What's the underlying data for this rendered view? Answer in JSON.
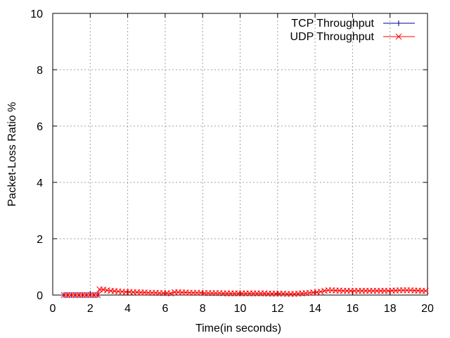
{
  "chart_data": {
    "type": "line",
    "xlabel": "Time(in seconds)",
    "ylabel": "Packet-Loss Ratio %",
    "xlim": [
      0,
      20
    ],
    "ylim": [
      0,
      10
    ],
    "x_ticks": [
      0,
      2,
      4,
      6,
      8,
      10,
      12,
      14,
      16,
      18,
      20
    ],
    "y_ticks": [
      0,
      2,
      4,
      6,
      8,
      10
    ],
    "grid": true,
    "legend_position": "top-right",
    "series": [
      {
        "name": "TCP Throughput",
        "color": "#00008b",
        "marker": "plus",
        "x": [
          0.6,
          0.8,
          1.0,
          1.2,
          1.4,
          1.6,
          1.8,
          2.0,
          2.2,
          2.4
        ],
        "y": [
          0,
          0,
          0,
          0,
          0,
          0,
          0,
          0,
          0,
          0
        ]
      },
      {
        "name": "UDP Throughput",
        "color": "#ff0000",
        "marker": "x",
        "x": [
          0.6,
          0.8,
          1.0,
          1.2,
          1.4,
          1.6,
          1.8,
          2.0,
          2.2,
          2.4,
          2.5,
          2.7,
          2.9,
          3.1,
          3.3,
          3.5,
          3.7,
          3.9,
          4.1,
          4.3,
          4.5,
          4.7,
          4.9,
          5.1,
          5.3,
          5.5,
          5.7,
          5.9,
          6.1,
          6.3,
          6.5,
          6.7,
          6.9,
          7.1,
          7.3,
          7.5,
          7.7,
          7.9,
          8.1,
          8.3,
          8.5,
          8.7,
          8.9,
          9.1,
          9.3,
          9.5,
          9.7,
          9.9,
          10.1,
          10.3,
          10.5,
          10.7,
          10.9,
          11.1,
          11.3,
          11.5,
          11.7,
          11.9,
          12.1,
          12.3,
          12.5,
          12.7,
          12.9,
          13.1,
          13.3,
          13.5,
          13.7,
          13.9,
          14.1,
          14.3,
          14.5,
          14.7,
          14.9,
          15.1,
          15.3,
          15.5,
          15.7,
          15.9,
          16.1,
          16.3,
          16.5,
          16.7,
          16.9,
          17.1,
          17.3,
          17.5,
          17.7,
          17.9,
          18.1,
          18.3,
          18.5,
          18.7,
          18.9,
          19.1,
          19.3,
          19.5,
          19.7,
          19.9
        ],
        "y": [
          0,
          0,
          0,
          0,
          0,
          0,
          0,
          0,
          0,
          0,
          0.2,
          0.19,
          0.17,
          0.15,
          0.14,
          0.13,
          0.12,
          0.11,
          0.11,
          0.1,
          0.1,
          0.09,
          0.09,
          0.08,
          0.08,
          0.08,
          0.07,
          0.07,
          0.07,
          0.06,
          0.1,
          0.1,
          0.09,
          0.09,
          0.08,
          0.08,
          0.08,
          0.08,
          0.07,
          0.07,
          0.07,
          0.07,
          0.07,
          0.06,
          0.06,
          0.06,
          0.06,
          0.06,
          0.06,
          0.06,
          0.06,
          0.06,
          0.06,
          0.06,
          0.06,
          0.05,
          0.05,
          0.05,
          0.05,
          0.05,
          0.04,
          0.04,
          0.04,
          0.05,
          0.06,
          0.07,
          0.08,
          0.09,
          0.1,
          0.12,
          0.15,
          0.17,
          0.17,
          0.16,
          0.16,
          0.15,
          0.15,
          0.15,
          0.15,
          0.15,
          0.15,
          0.15,
          0.15,
          0.15,
          0.15,
          0.15,
          0.15,
          0.15,
          0.16,
          0.16,
          0.17,
          0.17,
          0.17,
          0.17,
          0.16,
          0.16,
          0.15,
          0.15
        ]
      }
    ]
  }
}
